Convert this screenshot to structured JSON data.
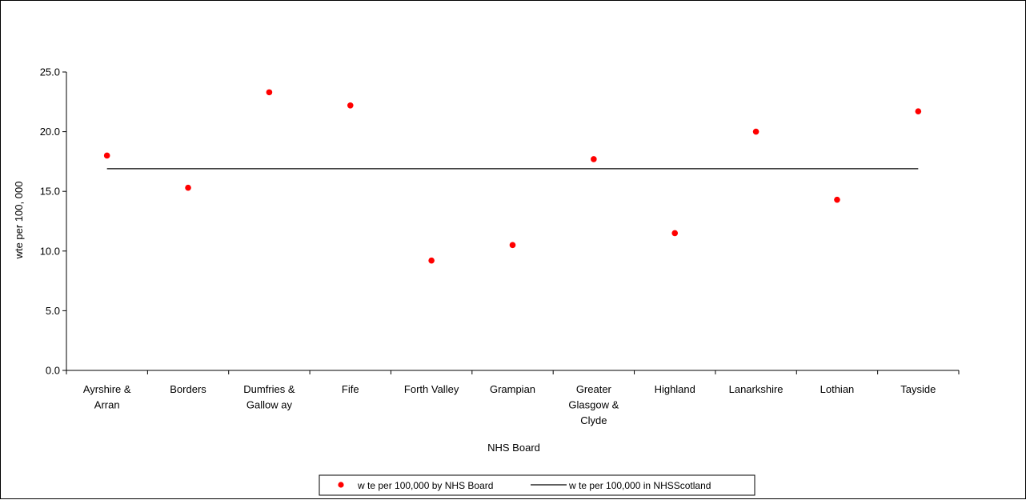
{
  "chart_data": {
    "type": "scatter",
    "title": "",
    "xlabel": "NHS Board",
    "ylabel": "wte per 100, 000",
    "categories": [
      "Ayrshire & Arran",
      "Borders",
      "Dumfries & Galloway",
      "Fife",
      "Forth Valley",
      "Grampian",
      "Greater Glasgow & Clyde",
      "Highland",
      "Lanarkshire",
      "Lothian",
      "Tayside"
    ],
    "category_lines": [
      [
        "Ayrshire &",
        "Arran"
      ],
      [
        "Borders"
      ],
      [
        "Dumfries &",
        "Gallow ay"
      ],
      [
        "Fife"
      ],
      [
        "Forth Valley"
      ],
      [
        "Grampian"
      ],
      [
        "Greater",
        "Glasgow &",
        "Clyde"
      ],
      [
        "Highland"
      ],
      [
        "Lanarkshire"
      ],
      [
        "Lothian"
      ],
      [
        "Tayside"
      ]
    ],
    "ylim": [
      0,
      25
    ],
    "yticks": [
      0,
      5,
      10,
      15,
      20,
      25
    ],
    "ytick_labels": [
      "0.0",
      "5.0",
      "10.0",
      "15.0",
      "20.0",
      "25.0"
    ],
    "series": [
      {
        "name": "w te per 100,000 by NHS Board",
        "kind": "scatter",
        "color": "#ff0000",
        "values": [
          18.0,
          15.3,
          23.3,
          22.2,
          9.2,
          10.5,
          17.7,
          11.5,
          20.0,
          14.3,
          21.7
        ]
      },
      {
        "name": "w te per 100,000 in NHSScotland",
        "kind": "line",
        "color": "#000000",
        "values": [
          16.9,
          16.9,
          16.9,
          16.9,
          16.9,
          16.9,
          16.9,
          16.9,
          16.9,
          16.9,
          16.9
        ]
      }
    ],
    "grid": false,
    "legend_position": "bottom"
  }
}
